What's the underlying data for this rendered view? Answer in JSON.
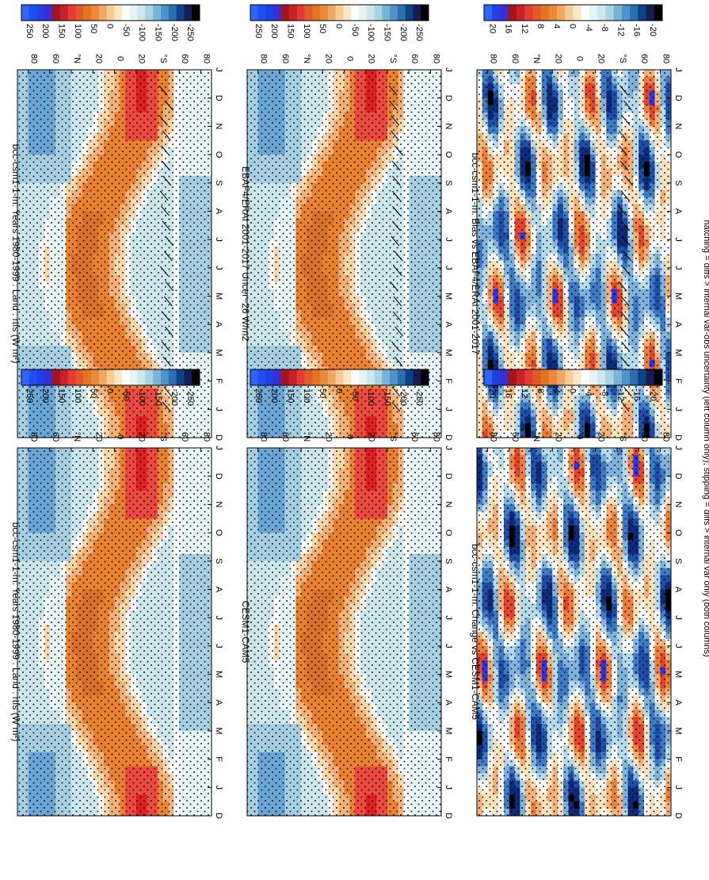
{
  "figure": {
    "footnote": "hatching = diffs > internal var-obs uncertainty (left column only); stippling = diffs > internal var only (both columns)"
  },
  "colors": {
    "flux_scale": [
      "#000000",
      "#141e55",
      "#0d4286",
      "#2a70b0",
      "#4c94c8",
      "#78b4d6",
      "#a8d3e2",
      "#cbe7ec",
      "#e6f4f4",
      "#ffffff",
      "#fbe6c6",
      "#f6cd94",
      "#f0a865",
      "#ea8a38",
      "#e57421",
      "#e05b2b",
      "#e63b33",
      "#c82128",
      "#a3141c",
      "#3b2fd0",
      "#2040e6",
      "#1c50f0",
      "#2f64f6"
    ],
    "diff_scale": [
      "#000000",
      "#141e55",
      "#0d4286",
      "#2a70b0",
      "#4c94c8",
      "#78b4d6",
      "#a8d3e2",
      "#cbe7ec",
      "#e6f4f4",
      "#ffffff",
      "#fbe6c6",
      "#f6cd94",
      "#f0a865",
      "#ea8a38",
      "#e57421",
      "#e05b2b",
      "#e63b33",
      "#c82128",
      "#a3141c",
      "#3b2fd0",
      "#2040e6",
      "#2f64f6"
    ]
  },
  "chart_data": [
    {
      "id": "p1",
      "type": "heatmap",
      "title": "bcc-csm1-1-m: Years 1980-1999 : Land : rtfs (W m²)",
      "field": "flux",
      "x_ticks": [
        "D",
        "J",
        "F",
        "M",
        "A",
        "M",
        "J",
        "J",
        "A",
        "S",
        "O",
        "N",
        "D",
        "J"
      ],
      "y_ticks": [
        "80",
        "60",
        "°N",
        "20",
        "0",
        "20",
        "°S",
        "60",
        "80"
      ],
      "colorbar_ticks": [
        "250",
        "200",
        "150",
        "100",
        "50",
        "0",
        "-50",
        "-100",
        "-150",
        "-200",
        "-250"
      ],
      "colorbar_units": "W m-2",
      "hatching": true,
      "stippling": true
    },
    {
      "id": "p2",
      "type": "heatmap",
      "title": "bcc-csm1-1-m: Years 1980-1999 : Land : rtfs (W m²)",
      "field": "flux",
      "x_ticks": [
        "D",
        "J",
        "F",
        "M",
        "A",
        "M",
        "J",
        "J",
        "A",
        "S",
        "O",
        "N",
        "D",
        "J"
      ],
      "y_ticks": [
        "80",
        "60",
        "°N",
        "20",
        "0",
        "20",
        "°S",
        "60",
        "80"
      ],
      "colorbar_ticks": [
        "250",
        "200",
        "150",
        "100",
        "50",
        "0",
        "-50",
        "-100",
        "-150",
        "-200",
        "-250"
      ],
      "colorbar_units": "W m-2",
      "hatching": false,
      "stippling": true
    },
    {
      "id": "p3",
      "type": "heatmap",
      "title": "EBAF4/ERAI 2001-2017 Uncer~26 W/m2",
      "field": "flux",
      "x_ticks": [
        "D",
        "J",
        "F",
        "M",
        "A",
        "M",
        "J",
        "J",
        "A",
        "S",
        "O",
        "N",
        "D",
        "J"
      ],
      "y_ticks": [
        "80",
        "60",
        "°N",
        "20",
        "0",
        "20",
        "°S",
        "60",
        "80"
      ],
      "colorbar_ticks": [
        "250",
        "200",
        "150",
        "100",
        "50",
        "0",
        "-50",
        "-100",
        "-150",
        "-200",
        "-250"
      ],
      "colorbar_units": "W m-2",
      "hatching": true,
      "stippling": true
    },
    {
      "id": "p4",
      "type": "heatmap",
      "title": "CESM1-CAM5",
      "field": "flux",
      "x_ticks": [
        "D",
        "J",
        "F",
        "M",
        "A",
        "M",
        "J",
        "J",
        "A",
        "S",
        "O",
        "N",
        "D",
        "J"
      ],
      "y_ticks": [
        "80",
        "60",
        "°N",
        "20",
        "0",
        "20",
        "°S",
        "60",
        "80"
      ],
      "colorbar_ticks": [
        "250",
        "200",
        "150",
        "100",
        "50",
        "0",
        "-50",
        "-100",
        "-150",
        "-200",
        "-250"
      ],
      "colorbar_units": "W m-2",
      "hatching": false,
      "stippling": true
    },
    {
      "id": "p5",
      "type": "heatmap",
      "title": "bcc-csm1-1-m: Bias vs EBAF4/ERAI 2001-2017",
      "field": "diff",
      "x_ticks": [
        "D",
        "J",
        "F",
        "M",
        "A",
        "M",
        "J",
        "J",
        "A",
        "S",
        "O",
        "N",
        "D",
        "J"
      ],
      "y_ticks": [
        "80",
        "60",
        "°N",
        "20",
        "0",
        "20",
        "°S",
        "60",
        "80"
      ],
      "colorbar_ticks": [
        "20",
        "16",
        "12",
        "8",
        "4",
        "0",
        "-4",
        "-8",
        "-12",
        "-16",
        "-20"
      ],
      "colorbar_units": "W m-2",
      "hatching": true,
      "stippling": true
    },
    {
      "id": "p6",
      "type": "heatmap",
      "title": "bcc-csm1-1-m: Change vs CESM1-CAM5",
      "field": "diff",
      "x_ticks": [
        "D",
        "J",
        "F",
        "M",
        "A",
        "M",
        "J",
        "J",
        "A",
        "S",
        "O",
        "N",
        "D",
        "J"
      ],
      "y_ticks": [
        "80",
        "60",
        "°N",
        "20",
        "0",
        "20",
        "°S",
        "60",
        "80"
      ],
      "colorbar_ticks": [
        "20",
        "16",
        "12",
        "8",
        "4",
        "0",
        "-4",
        "-8",
        "-12",
        "-16",
        "-20"
      ],
      "colorbar_units": "W m-2",
      "hatching": false,
      "stippling": true
    }
  ]
}
